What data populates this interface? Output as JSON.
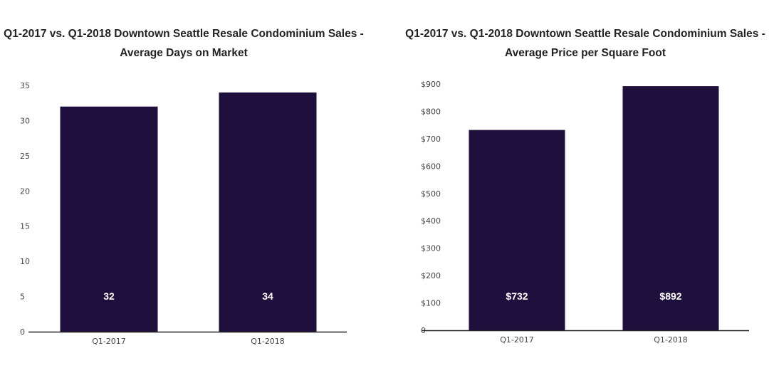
{
  "chart_data": [
    {
      "type": "bar",
      "title_line1": "Q1-2017 vs. Q1-2018 Downtown Seattle Resale Condominium Sales -",
      "title_line2": "Average Days on Market",
      "categories": [
        "Q1-2017",
        "Q1-2018"
      ],
      "values": [
        32,
        34
      ],
      "data_labels": [
        "32",
        "34"
      ],
      "ylim": [
        0,
        35
      ],
      "y_ticks": [
        0,
        5,
        10,
        15,
        20,
        25,
        30,
        35
      ],
      "y_tick_labels": [
        "0",
        "5",
        "10",
        "15",
        "20",
        "25",
        "30",
        "35"
      ],
      "grid": false,
      "bar_color": "#1f0f3c"
    },
    {
      "type": "bar",
      "title_line1": "Q1-2017 vs. Q1-2018 Downtown Seattle Resale Condominium Sales -",
      "title_line2": "Average Price per Square Foot",
      "categories": [
        "Q1-2017",
        "Q1-2018"
      ],
      "values": [
        732,
        892
      ],
      "data_labels": [
        "$732",
        "$892"
      ],
      "ylim": [
        0,
        900
      ],
      "y_ticks": [
        0,
        100,
        200,
        300,
        400,
        500,
        600,
        700,
        800,
        900
      ],
      "y_tick_labels": [
        "0",
        "$100",
        "$200",
        "$300",
        "$400",
        "$500",
        "$600",
        "$700",
        "$800",
        "$900"
      ],
      "grid": false,
      "bar_color": "#1f0f3c"
    }
  ]
}
